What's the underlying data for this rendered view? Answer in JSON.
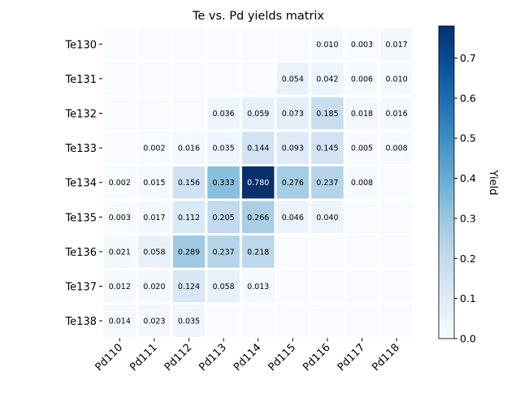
{
  "chart_data": {
    "type": "heatmap",
    "title": "Te vs. Pd yields matrix",
    "x_categories": [
      "Pd110",
      "Pd111",
      "Pd112",
      "Pd113",
      "Pd114",
      "Pd115",
      "Pd116",
      "Pd117",
      "Pd118"
    ],
    "y_categories": [
      "Te130",
      "Te131",
      "Te132",
      "Te133",
      "Te134",
      "Te135",
      "Te136",
      "Te137",
      "Te138"
    ],
    "values": [
      [
        null,
        null,
        null,
        null,
        null,
        null,
        0.01,
        0.003,
        0.017
      ],
      [
        null,
        null,
        null,
        null,
        null,
        0.054,
        0.042,
        0.006,
        0.01
      ],
      [
        null,
        null,
        null,
        0.036,
        0.059,
        0.073,
        0.185,
        0.018,
        0.016
      ],
      [
        null,
        0.002,
        0.016,
        0.035,
        0.144,
        0.093,
        0.145,
        0.005,
        0.008
      ],
      [
        0.002,
        0.015,
        0.156,
        0.333,
        0.78,
        0.276,
        0.237,
        0.008,
        null
      ],
      [
        0.003,
        0.017,
        0.112,
        0.205,
        0.266,
        0.046,
        0.04,
        null,
        null
      ],
      [
        0.021,
        0.058,
        0.289,
        0.237,
        0.218,
        null,
        null,
        null,
        null
      ],
      [
        0.012,
        0.02,
        0.124,
        0.058,
        0.013,
        null,
        null,
        null,
        null
      ],
      [
        0.014,
        0.023,
        0.035,
        null,
        null,
        null,
        null,
        null,
        null
      ]
    ],
    "colorbar": {
      "label": "Yield",
      "range": [
        0,
        0.78
      ],
      "ticks": [
        "0.0",
        "0.1",
        "0.2",
        "0.3",
        "0.4",
        "0.5",
        "0.6",
        "0.7"
      ],
      "colormap": "Blues"
    },
    "grid": false
  }
}
